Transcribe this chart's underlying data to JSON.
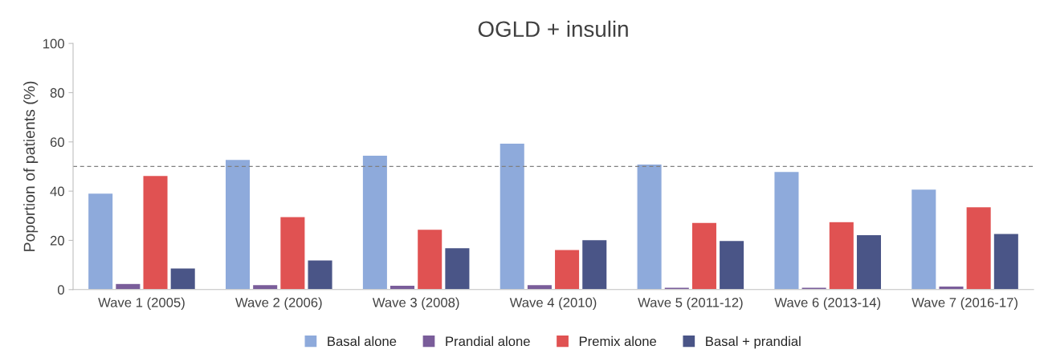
{
  "chart_data": {
    "type": "bar",
    "title": "OGLD + insulin",
    "ylabel": "Poportion of patients (%)",
    "categories": [
      "Wave 1 (2005)",
      "Wave 2 (2006)",
      "Wave 3 (2008)",
      "Wave 4 (2010)",
      "Wave 5 (2011-12)",
      "Wave 6 (2013-14)",
      "Wave 7 (2016-17)"
    ],
    "series": [
      {
        "name": "Basal alone",
        "color": "#8eaadb",
        "values": [
          39.2,
          52.9,
          54.6,
          59.5,
          51,
          48,
          40.8
        ]
      },
      {
        "name": "Prandial alone",
        "color": "#7a5d9a",
        "values": [
          2.5,
          2,
          1.8,
          2,
          1,
          1,
          1.5
        ]
      },
      {
        "name": "Premix alone",
        "color": "#e05252",
        "values": [
          46.4,
          29.7,
          24.5,
          16.3,
          27.3,
          27.6,
          33.7
        ]
      },
      {
        "name": "Basal + prandial",
        "color": "#4a5587",
        "values": [
          8.8,
          12.1,
          17,
          20.3,
          20,
          22.3,
          22.8
        ]
      }
    ],
    "ylim": [
      0,
      100
    ],
    "yticks": [
      0,
      20,
      40,
      60,
      80,
      100
    ],
    "grid": false,
    "legend": "bottom",
    "ref_lines": [
      {
        "axis": "y",
        "value": 50,
        "color": "#808080",
        "line_style": "dashed"
      }
    ]
  }
}
